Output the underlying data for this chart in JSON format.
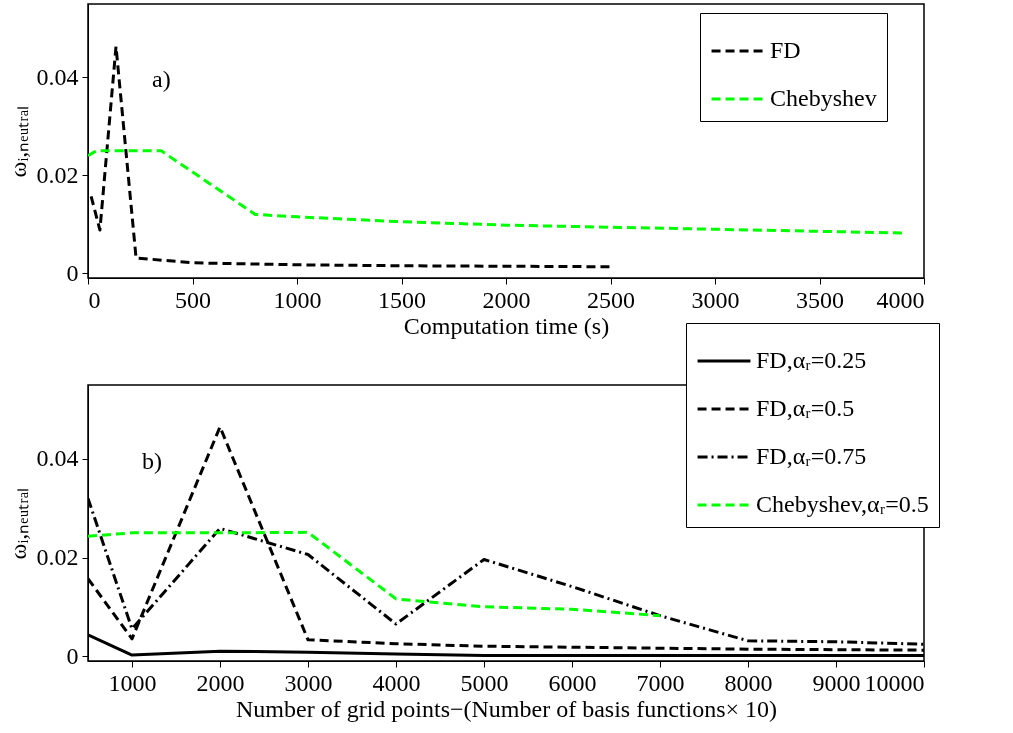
{
  "chart_data": [
    {
      "type": "line",
      "xlabel": "Computation time (s)",
      "ylabel": "ωᵢ,ₙₑᵤₜᵣₐₗ",
      "xlim": [
        0,
        4000
      ],
      "xticks": [
        0,
        500,
        1000,
        1500,
        2000,
        2500,
        3000,
        3500,
        4000
      ],
      "ylim": [
        -0.001,
        0.055
      ],
      "yticks": [
        0,
        0.02,
        0.04
      ],
      "grid": false,
      "legend": "top right",
      "annotations": [
        "a)"
      ],
      "series": [
        {
          "name": "FD",
          "color": "#000000",
          "line_style": "dashed",
          "x": [
            15,
            57,
            134,
            230,
            500,
            1000,
            1500,
            2000,
            2500
          ],
          "values": [
            0.0157,
            0.0088,
            0.0463,
            0.0031,
            0.0021,
            0.0017,
            0.0015,
            0.0014,
            0.0013
          ]
        },
        {
          "name": "Chebyshev",
          "color": "#00ff00",
          "line_style": "dashed",
          "x": [
            0,
            40,
            350,
            800,
            1000,
            1500,
            2000,
            3900
          ],
          "values": [
            0.024,
            0.025,
            0.025,
            0.012,
            0.0115,
            0.0105,
            0.0098,
            0.0082
          ]
        }
      ]
    },
    {
      "type": "line",
      "xlabel": "Number of grid points−(Number of basis functions× 10)",
      "ylabel": "ωᵢ,ₙₑᵤₜᵣₐₗ",
      "xlim": [
        500,
        10000
      ],
      "xticks": [
        1000,
        2000,
        3000,
        4000,
        5000,
        6000,
        7000,
        8000,
        9000,
        10000
      ],
      "ylim": [
        -0.001,
        0.055
      ],
      "yticks": [
        0,
        0.02,
        0.04
      ],
      "grid": false,
      "legend": "top right",
      "annotations": [
        "b)"
      ],
      "x": [
        500,
        1000,
        2000,
        3000,
        4000,
        5000,
        6000,
        7000,
        8000,
        9000,
        10000
      ],
      "series": [
        {
          "name": "FD,αᵣ=0.25",
          "color": "#000000",
          "line_style": "solid",
          "values": [
            0.0043,
            0.0002,
            0.001,
            0.0008,
            0.0004,
            0.0001,
            0.0001,
            0.0001,
            0.0001,
            0.0001,
            0.0001
          ]
        },
        {
          "name": "FD,αᵣ=0.5",
          "color": "#000000",
          "line_style": "dashed",
          "values": [
            0.0157,
            0.0035,
            0.0465,
            0.0033,
            0.0025,
            0.002,
            0.0018,
            0.0016,
            0.0014,
            0.0013,
            0.0012
          ]
        },
        {
          "name": "FD,αᵣ=0.75",
          "color": "#000000",
          "line_style": "dashdot",
          "values": [
            0.032,
            0.0055,
            0.0259,
            0.0206,
            0.0065,
            0.0196,
            0.0141,
            0.0082,
            0.0031,
            0.0029,
            0.0024
          ]
        },
        {
          "name": "Chebyshev,αᵣ=0.5",
          "color": "#00ff00",
          "line_style": "dashed",
          "x": [
            500,
            1000,
            2000,
            3000,
            4000,
            5000,
            6000,
            7000
          ],
          "values": [
            0.0243,
            0.025,
            0.025,
            0.0251,
            0.0116,
            0.01,
            0.0095,
            0.0082
          ]
        }
      ]
    }
  ]
}
